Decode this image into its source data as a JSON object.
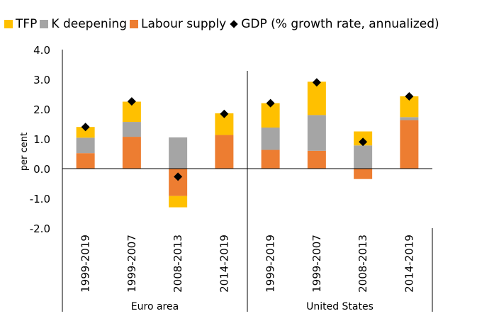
{
  "chart_data": {
    "type": "bar",
    "stacked": true,
    "ylabel": "per cent",
    "ylim": [
      -2.0,
      4.0
    ],
    "yticks": [
      "-2.0",
      "-1.0",
      "0.0",
      "1.0",
      "2.0",
      "3.0",
      "4.0"
    ],
    "categories": [
      "1999-2019",
      "1999-2007",
      "2008-2013",
      "2014-2019",
      "1999-2019",
      "1999-2007",
      "2008-2013",
      "2014-2019"
    ],
    "groups": [
      {
        "name": "Euro area",
        "count": 4
      },
      {
        "name": "United States",
        "count": 4
      }
    ],
    "series": [
      {
        "name": "Labour supply",
        "color": "#ed7d31",
        "values": [
          0.52,
          1.07,
          -0.92,
          1.13,
          0.63,
          0.6,
          -0.35,
          1.63
        ]
      },
      {
        "name": "K deepening",
        "color": "#a5a5a5",
        "values": [
          0.52,
          0.5,
          1.05,
          0.0,
          0.75,
          1.2,
          0.78,
          0.1
        ]
      },
      {
        "name": "TFP",
        "color": "#ffc000",
        "values": [
          0.36,
          0.68,
          -0.38,
          0.73,
          0.82,
          1.12,
          0.47,
          0.7
        ]
      }
    ],
    "line": {
      "name": "GDP (% growth rate, annualized)",
      "color": "#000000",
      "marker": "diamond",
      "values": [
        1.4,
        2.26,
        -0.27,
        1.84,
        2.2,
        2.9,
        0.9,
        2.43
      ]
    }
  },
  "legend": [
    {
      "label": "TFP",
      "color": "#ffc000",
      "icon": "square-swatch"
    },
    {
      "label": "K deepening",
      "color": "#a5a5a5",
      "icon": "square-swatch"
    },
    {
      "label": "Labour supply",
      "color": "#ed7d31",
      "icon": "square-swatch"
    },
    {
      "label": "GDP (% growth rate, annualized)",
      "color": "#000000",
      "icon": "diamond-marker"
    }
  ]
}
